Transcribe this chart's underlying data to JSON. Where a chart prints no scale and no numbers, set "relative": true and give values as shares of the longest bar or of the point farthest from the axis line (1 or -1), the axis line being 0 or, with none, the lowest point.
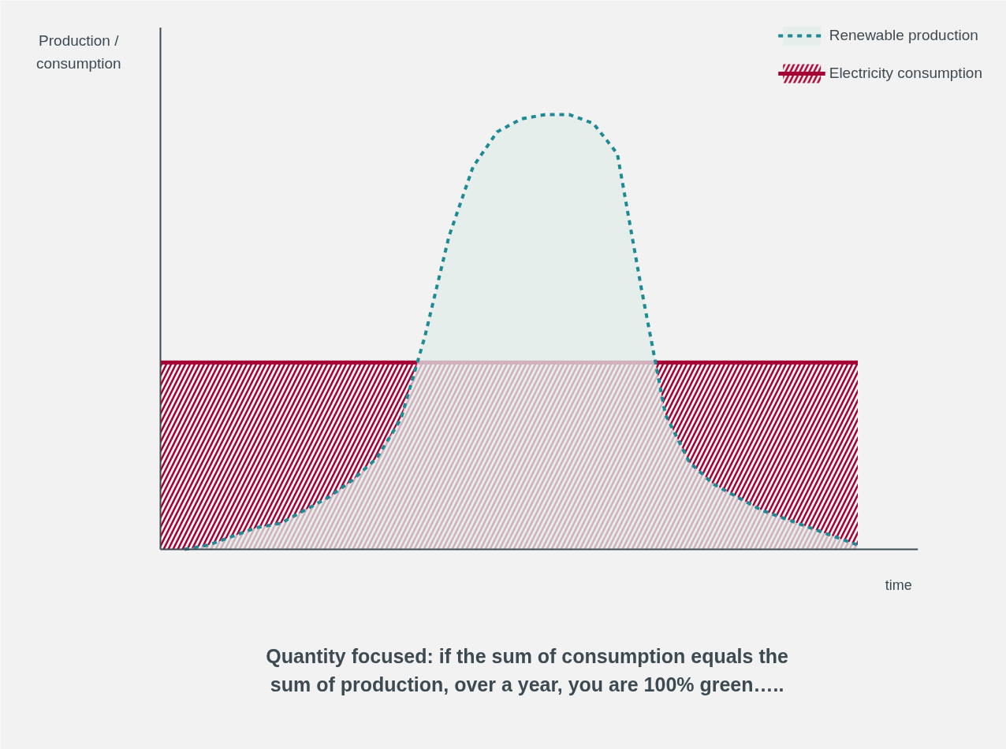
{
  "chart_data": {
    "type": "area",
    "relative": true,
    "xlabel": "time",
    "ylabel": "Production / consumption",
    "annotations": [
      "Quantity focused: if the sum of consumption equals the sum of production, over a year, you are 100% green….."
    ],
    "legend": "top right",
    "grid": false,
    "categories": [
      null,
      null,
      null,
      null,
      null,
      null,
      null,
      null,
      null,
      null,
      null,
      null,
      null,
      null,
      null,
      null,
      null,
      null,
      null,
      null,
      null,
      null,
      null,
      null,
      null,
      null,
      null,
      null,
      null,
      null
    ],
    "series": [
      {
        "name": "Renewable production",
        "color": "#1f8a96",
        "line_style": "dashed",
        "values": [
          null,
          0,
          0.01,
          0.03,
          0.05,
          0.06,
          0.09,
          0.12,
          0.16,
          0.21,
          0.3,
          0.49,
          0.72,
          0.88,
          0.96,
          0.99,
          1.0,
          1.0,
          0.98,
          0.91,
          0.6,
          0.31,
          0.2,
          0.15,
          0.12,
          0.09,
          0.07,
          0.05,
          0.03,
          0.01
        ]
      },
      {
        "name": "Electricity consumption",
        "color": "#a50034",
        "values": [
          0.43,
          0.43,
          0.43,
          0.43,
          0.43,
          0.43,
          0.43,
          0.43,
          0.43,
          0.43,
          0.43,
          0.43,
          0.43,
          0.43,
          0.43,
          0.43,
          0.43,
          0.43,
          0.43,
          0.43,
          0.43,
          0.43,
          0.43,
          0.43,
          0.43,
          0.43,
          0.43,
          0.43,
          0.43,
          0.43
        ]
      }
    ]
  }
}
